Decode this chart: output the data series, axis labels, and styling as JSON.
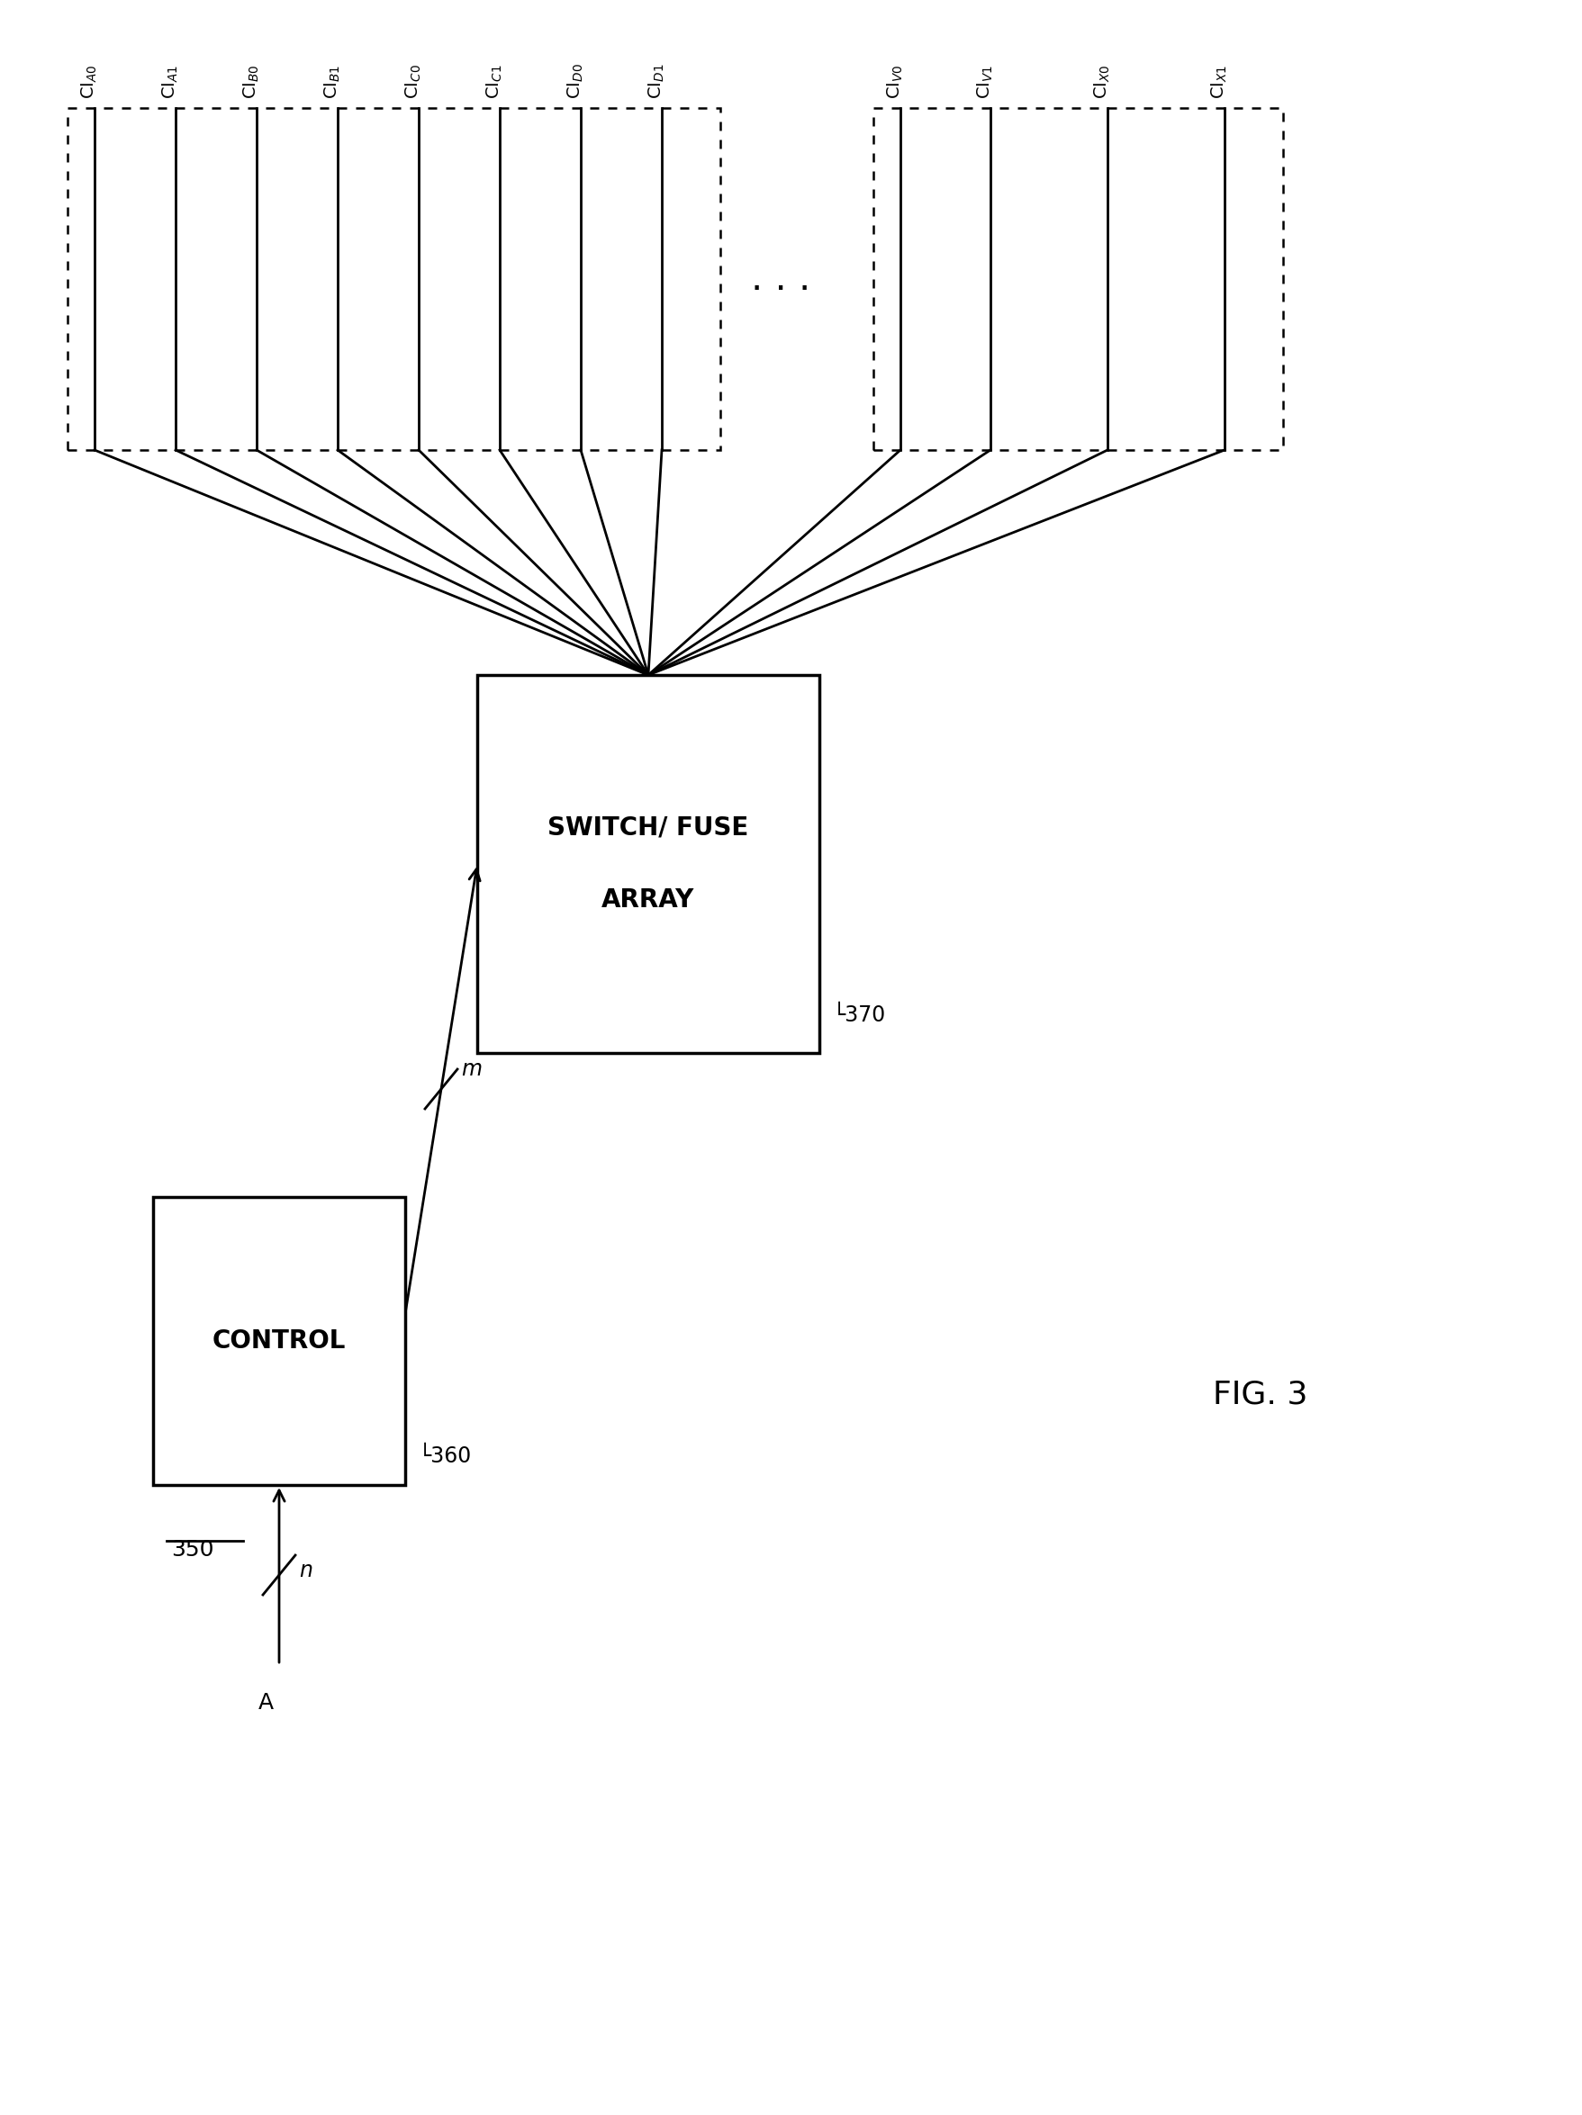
{
  "fig_width": 17.58,
  "fig_height": 23.5,
  "bg_color": "#ffffff",
  "label_names": [
    [
      "CI",
      "A",
      "0"
    ],
    [
      "CI",
      "A",
      "1"
    ],
    [
      "CI",
      "B",
      "0"
    ],
    [
      "CI",
      "B",
      "1"
    ],
    [
      "CI",
      "C",
      "0"
    ],
    [
      "CI",
      "C",
      "1"
    ],
    [
      "CI",
      "D",
      "0"
    ],
    [
      "CI",
      "D",
      "1"
    ],
    [
      "CI",
      "V",
      "0"
    ],
    [
      "CI",
      "V",
      "1"
    ],
    [
      "CI",
      "X",
      "0"
    ],
    [
      "CI",
      "X",
      "1"
    ]
  ],
  "switch_label1": "SWITCH/ FUSE",
  "switch_label2": "ARRAY",
  "switch_ref": "370",
  "control_label": "CONTROL",
  "control_ref": "360",
  "system_ref": "350",
  "fig_label": "FIG. 3",
  "m_label": "m",
  "n_label": "n",
  "a_label": "A",
  "dots_label": ". . ."
}
